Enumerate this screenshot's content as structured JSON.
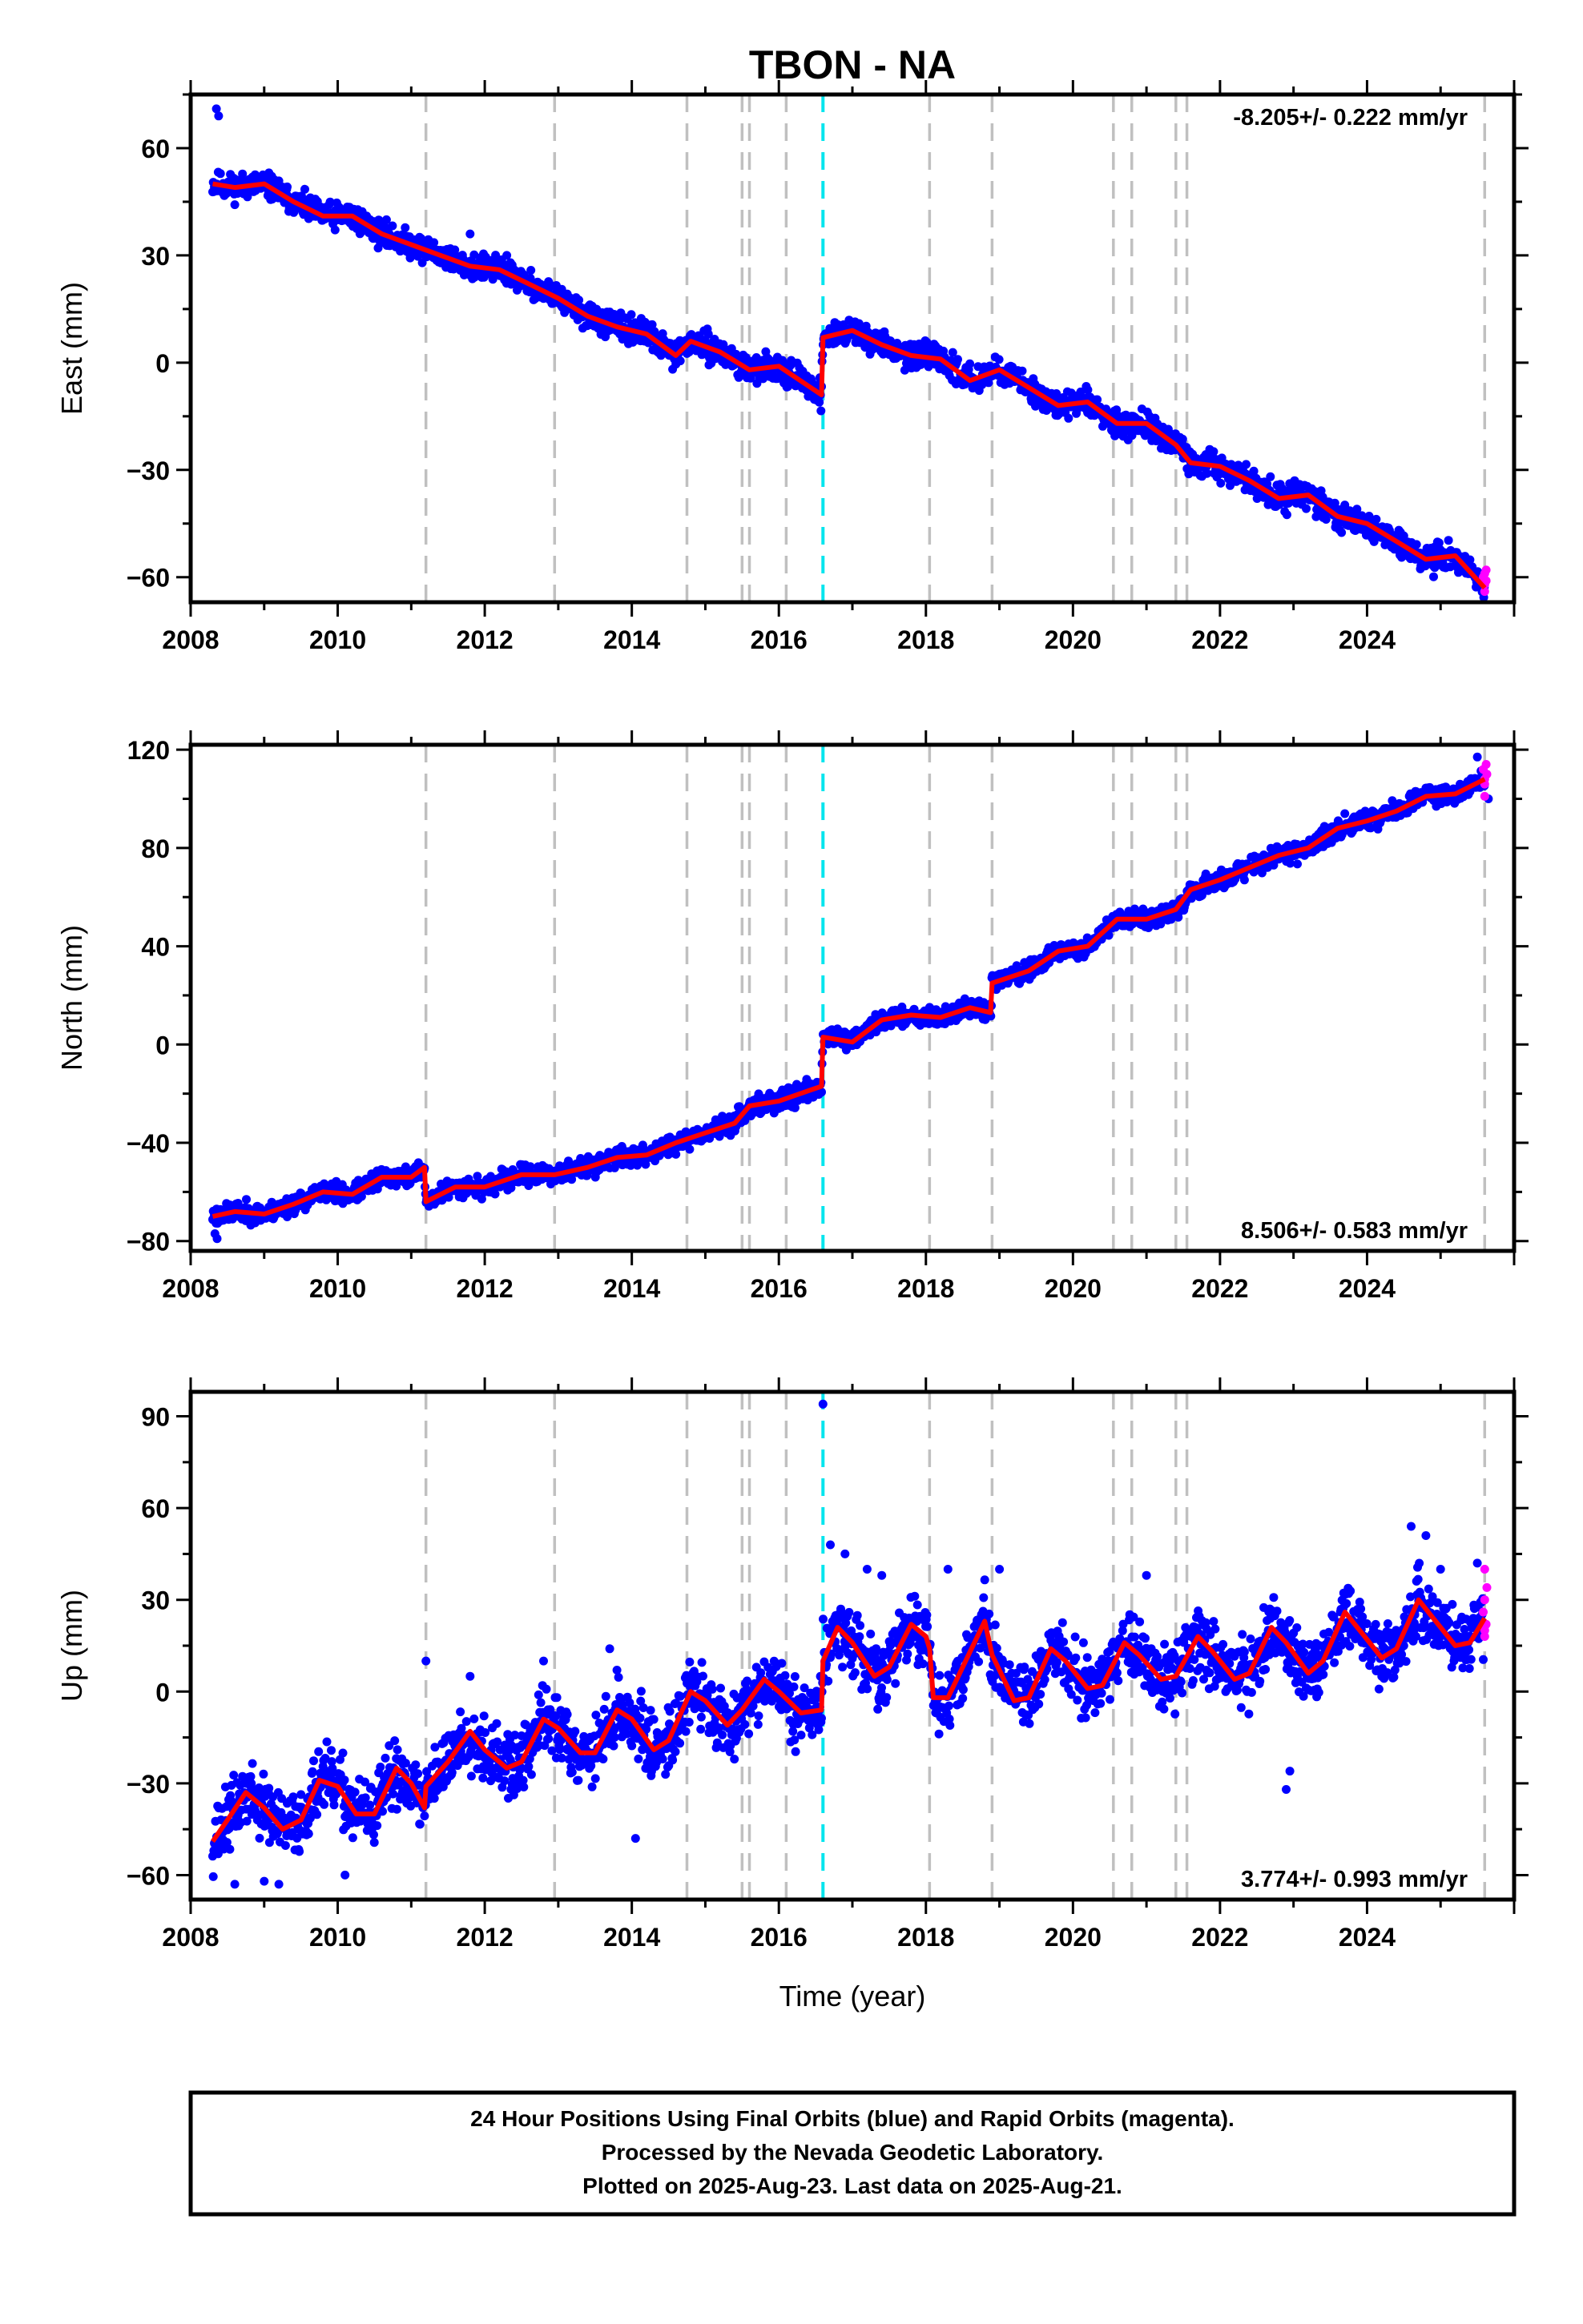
{
  "chart_data": {
    "type": "scatter",
    "title": "TBON - NA",
    "xlabel": "Time (year)",
    "xlim": [
      2008,
      2026
    ],
    "xticks": [
      2008,
      2010,
      2012,
      2014,
      2016,
      2018,
      2020,
      2022,
      2024
    ],
    "xtick_labels": [
      "2008",
      "2010",
      "2012",
      "2014",
      "2016",
      "2018",
      "2020",
      "2022",
      "2024"
    ],
    "colors": {
      "final_orbits": "#0000ff",
      "rapid_orbits": "#ff00ff",
      "model": "#ff0000",
      "event_lines": "#c0c0c0",
      "antenna_change_line": "#00e5ee"
    },
    "event_lines_x": [
      2011.2,
      2012.95,
      2014.75,
      2015.5,
      2015.6,
      2016.1,
      2018.05,
      2018.9,
      2020.55,
      2020.8,
      2021.4,
      2021.55,
      2025.6
    ],
    "highlight_line_x": 2016.6,
    "panels": [
      {
        "name": "East",
        "ylabel": "East (mm)",
        "ylim": [
          -67,
          75
        ],
        "yticks": [
          -60,
          -30,
          0,
          30,
          60
        ],
        "ytick_labels": [
          "−60",
          "−30",
          "0",
          "30",
          "60"
        ],
        "rate": "-8.205+/- 0.222 mm/yr",
        "rate_position": "top-right",
        "noise": 2.2,
        "seed": 11,
        "model": [
          [
            2008.3,
            50
          ],
          [
            2008.6,
            49
          ],
          [
            2009.0,
            50
          ],
          [
            2009.4,
            45
          ],
          [
            2009.8,
            41
          ],
          [
            2010.2,
            41
          ],
          [
            2010.6,
            36
          ],
          [
            2011.0,
            33
          ],
          [
            2011.4,
            30
          ],
          [
            2011.8,
            27
          ],
          [
            2012.2,
            26
          ],
          [
            2012.6,
            22
          ],
          [
            2013.0,
            18
          ],
          [
            2013.4,
            13
          ],
          [
            2013.8,
            10
          ],
          [
            2014.2,
            8
          ],
          [
            2014.6,
            2
          ],
          [
            2014.8,
            6
          ],
          [
            2015.2,
            3
          ],
          [
            2015.6,
            -2
          ],
          [
            2016.0,
            -1
          ],
          [
            2016.58,
            -9
          ],
          [
            2016.6,
            7
          ],
          [
            2017.0,
            9
          ],
          [
            2017.4,
            5
          ],
          [
            2017.8,
            2
          ],
          [
            2018.2,
            1
          ],
          [
            2018.6,
            -5
          ],
          [
            2019.0,
            -2
          ],
          [
            2019.4,
            -7
          ],
          [
            2019.8,
            -12
          ],
          [
            2020.2,
            -11
          ],
          [
            2020.6,
            -17
          ],
          [
            2021.0,
            -17
          ],
          [
            2021.4,
            -23
          ],
          [
            2021.6,
            -28
          ],
          [
            2022.0,
            -29
          ],
          [
            2022.4,
            -33
          ],
          [
            2022.8,
            -38
          ],
          [
            2023.2,
            -37
          ],
          [
            2023.6,
            -43
          ],
          [
            2024.0,
            -45
          ],
          [
            2024.4,
            -50
          ],
          [
            2024.8,
            -55
          ],
          [
            2025.2,
            -54
          ],
          [
            2025.6,
            -63
          ]
        ],
        "outliers": [
          [
            2008.35,
            71
          ],
          [
            2008.38,
            69
          ],
          [
            2011.8,
            36
          ],
          [
            2012.3,
            30
          ],
          [
            2020.2,
            -14
          ]
        ],
        "rapid": [
          [
            2025.58,
            -60
          ],
          [
            2025.6,
            -62
          ],
          [
            2025.62,
            -58
          ],
          [
            2025.6,
            -64
          ],
          [
            2025.62,
            -61
          ],
          [
            2025.6,
            -59
          ]
        ]
      },
      {
        "name": "North",
        "ylabel": "North (mm)",
        "ylim": [
          -84,
          122
        ],
        "yticks": [
          -80,
          -40,
          0,
          40,
          80,
          120
        ],
        "ytick_labels": [
          "−80",
          "−40",
          "0",
          "40",
          "80",
          "120"
        ],
        "rate": "8.506+/- 0.583 mm/yr",
        "rate_position": "bottom-right",
        "noise": 2.4,
        "seed": 23,
        "model": [
          [
            2008.3,
            -70
          ],
          [
            2008.6,
            -68
          ],
          [
            2009.0,
            -69
          ],
          [
            2009.4,
            -65
          ],
          [
            2009.8,
            -60
          ],
          [
            2010.2,
            -61
          ],
          [
            2010.6,
            -54
          ],
          [
            2011.0,
            -54
          ],
          [
            2011.18,
            -50
          ],
          [
            2011.2,
            -64
          ],
          [
            2011.6,
            -58
          ],
          [
            2012.0,
            -58
          ],
          [
            2012.5,
            -53
          ],
          [
            2012.95,
            -53
          ],
          [
            2013.4,
            -50
          ],
          [
            2013.8,
            -46
          ],
          [
            2014.2,
            -45
          ],
          [
            2014.6,
            -40
          ],
          [
            2015.0,
            -36
          ],
          [
            2015.4,
            -32
          ],
          [
            2015.6,
            -25
          ],
          [
            2016.0,
            -23
          ],
          [
            2016.58,
            -17
          ],
          [
            2016.6,
            3
          ],
          [
            2017.0,
            1
          ],
          [
            2017.4,
            10
          ],
          [
            2017.8,
            12
          ],
          [
            2018.2,
            11
          ],
          [
            2018.6,
            15
          ],
          [
            2018.88,
            13
          ],
          [
            2018.9,
            25
          ],
          [
            2019.4,
            30
          ],
          [
            2019.8,
            38
          ],
          [
            2020.2,
            40
          ],
          [
            2020.6,
            51
          ],
          [
            2021.0,
            51
          ],
          [
            2021.4,
            55
          ],
          [
            2021.6,
            63
          ],
          [
            2022.0,
            67
          ],
          [
            2022.4,
            72
          ],
          [
            2022.8,
            77
          ],
          [
            2023.2,
            80
          ],
          [
            2023.6,
            88
          ],
          [
            2024.0,
            91
          ],
          [
            2024.4,
            95
          ],
          [
            2024.8,
            101
          ],
          [
            2025.2,
            102
          ],
          [
            2025.6,
            108
          ]
        ],
        "outliers": [
          [
            2008.33,
            -77
          ],
          [
            2008.36,
            -79
          ],
          [
            2025.5,
            117
          ],
          [
            2025.65,
            100
          ]
        ],
        "rapid": [
          [
            2025.58,
            112
          ],
          [
            2025.6,
            108
          ],
          [
            2025.62,
            114
          ],
          [
            2025.6,
            106
          ],
          [
            2025.63,
            110
          ],
          [
            2025.6,
            101
          ]
        ]
      },
      {
        "name": "Up",
        "ylabel": "Up (mm)",
        "ylim": [
          -68,
          98
        ],
        "yticks": [
          -60,
          -30,
          0,
          30,
          60,
          90
        ],
        "ytick_labels": [
          "−60",
          "−30",
          "0",
          "30",
          "60",
          "90"
        ],
        "rate": "3.774+/- 0.993 mm/yr",
        "rate_position": "bottom-right",
        "noise": 6.5,
        "seed": 37,
        "model": [
          [
            2008.3,
            -49
          ],
          [
            2008.5,
            -42
          ],
          [
            2008.75,
            -33
          ],
          [
            2009.0,
            -38
          ],
          [
            2009.25,
            -45
          ],
          [
            2009.5,
            -42
          ],
          [
            2009.75,
            -29
          ],
          [
            2010.0,
            -31
          ],
          [
            2010.25,
            -40
          ],
          [
            2010.5,
            -40
          ],
          [
            2010.8,
            -25
          ],
          [
            2011.0,
            -30
          ],
          [
            2011.18,
            -38
          ],
          [
            2011.2,
            -31
          ],
          [
            2011.5,
            -23
          ],
          [
            2011.8,
            -13
          ],
          [
            2012.0,
            -19
          ],
          [
            2012.3,
            -25
          ],
          [
            2012.5,
            -23
          ],
          [
            2012.8,
            -9
          ],
          [
            2013.0,
            -12
          ],
          [
            2013.3,
            -20
          ],
          [
            2013.5,
            -20
          ],
          [
            2013.8,
            -6
          ],
          [
            2014.0,
            -9
          ],
          [
            2014.3,
            -19
          ],
          [
            2014.5,
            -16
          ],
          [
            2014.8,
            0
          ],
          [
            2015.0,
            -3
          ],
          [
            2015.3,
            -11
          ],
          [
            2015.5,
            -6
          ],
          [
            2015.8,
            4
          ],
          [
            2016.0,
            0
          ],
          [
            2016.3,
            -7
          ],
          [
            2016.58,
            -6
          ],
          [
            2016.6,
            10
          ],
          [
            2016.8,
            21
          ],
          [
            2017.0,
            16
          ],
          [
            2017.3,
            5
          ],
          [
            2017.5,
            8
          ],
          [
            2017.8,
            22
          ],
          [
            2018.0,
            18
          ],
          [
            2018.05,
            14
          ],
          [
            2018.1,
            -2
          ],
          [
            2018.3,
            -2
          ],
          [
            2018.5,
            8
          ],
          [
            2018.8,
            23
          ],
          [
            2018.9,
            12
          ],
          [
            2019.2,
            -3
          ],
          [
            2019.4,
            -2
          ],
          [
            2019.7,
            14
          ],
          [
            2019.9,
            10
          ],
          [
            2020.2,
            1
          ],
          [
            2020.4,
            2
          ],
          [
            2020.7,
            16
          ],
          [
            2020.9,
            12
          ],
          [
            2021.2,
            4
          ],
          [
            2021.4,
            5
          ],
          [
            2021.7,
            18
          ],
          [
            2021.9,
            13
          ],
          [
            2022.2,
            4
          ],
          [
            2022.4,
            6
          ],
          [
            2022.7,
            21
          ],
          [
            2022.9,
            16
          ],
          [
            2023.2,
            6
          ],
          [
            2023.4,
            10
          ],
          [
            2023.7,
            26
          ],
          [
            2023.9,
            20
          ],
          [
            2024.2,
            11
          ],
          [
            2024.4,
            14
          ],
          [
            2024.7,
            30
          ],
          [
            2024.9,
            24
          ],
          [
            2025.2,
            15
          ],
          [
            2025.4,
            16
          ],
          [
            2025.6,
            24
          ]
        ],
        "outliers": [
          [
            2016.6,
            94
          ],
          [
            2016.7,
            48
          ],
          [
            2016.9,
            45
          ],
          [
            2017.2,
            40
          ],
          [
            2017.4,
            38
          ],
          [
            2018.3,
            40
          ],
          [
            2019.0,
            40
          ],
          [
            2022.9,
            -32
          ],
          [
            2022.95,
            -26
          ],
          [
            2024.6,
            54
          ],
          [
            2024.8,
            51
          ],
          [
            2025.5,
            42
          ],
          [
            2008.6,
            -63
          ],
          [
            2009.0,
            -62
          ],
          [
            2009.2,
            -63
          ],
          [
            2010.1,
            -60
          ],
          [
            2014.05,
            -48
          ],
          [
            2011.2,
            10
          ],
          [
            2011.8,
            5
          ],
          [
            2012.8,
            10
          ],
          [
            2013.7,
            14
          ],
          [
            2025.0,
            40
          ],
          [
            2021.0,
            38
          ]
        ],
        "rapid": [
          [
            2025.6,
            40
          ],
          [
            2025.6,
            30
          ],
          [
            2025.62,
            22
          ],
          [
            2025.58,
            26
          ],
          [
            2025.6,
            18
          ],
          [
            2025.63,
            34
          ],
          [
            2025.6,
            20
          ]
        ]
      }
    ]
  },
  "footer": {
    "line1": "24 Hour Positions Using Final Orbits (blue) and Rapid Orbits (magenta).",
    "line2": "Processed by the Nevada Geodetic Laboratory.",
    "line3": "Plotted on 2025-Aug-23. Last data on 2025-Aug-21."
  }
}
